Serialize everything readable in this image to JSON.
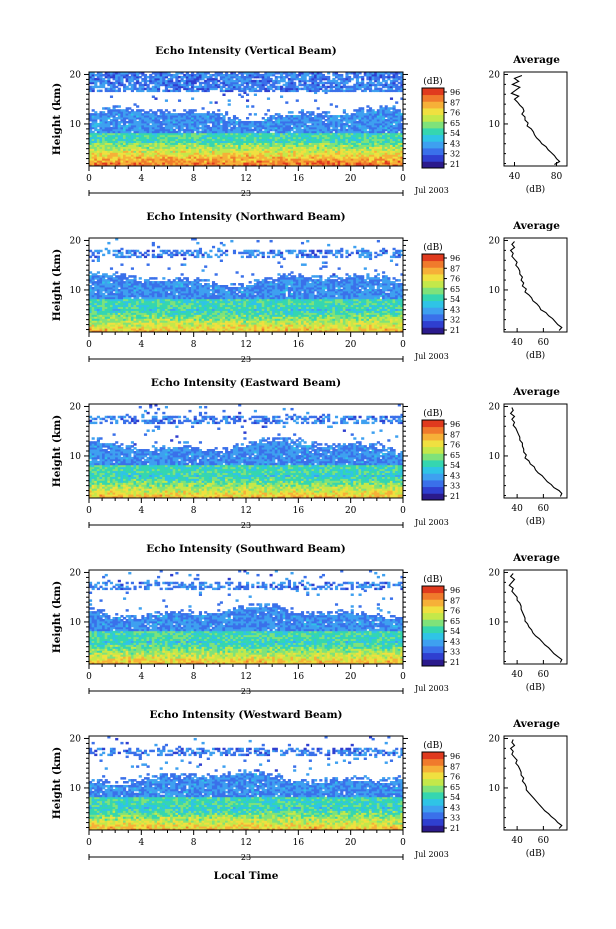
{
  "figure": {
    "xlabel": "Local Time",
    "date_label": "Jul 2003",
    "day_label": "23",
    "colorbar_unit": "(dB)",
    "profile_title": "Average",
    "profile_xlabel": "(dB)"
  },
  "colors": {
    "scale": [
      "#2b1a8c",
      "#2f3fd0",
      "#3a70ea",
      "#3ea0f0",
      "#2fc4e6",
      "#35d6b0",
      "#7fe27a",
      "#c4e84a",
      "#f0e040",
      "#f6b038",
      "#f07a2c",
      "#e03a1e"
    ]
  },
  "chart_data": [
    {
      "type": "heatmap",
      "title": "Echo Intensity (Vertical Beam)",
      "ylabel": "Height (km)",
      "x_ticks": [
        "0",
        "4",
        "8",
        "12",
        "16",
        "20",
        "0"
      ],
      "y_ticks": [
        "20",
        "10"
      ],
      "xlim": [
        0,
        24
      ],
      "ylim": [
        1.5,
        20.5
      ],
      "colorbar_ticks": [
        "96",
        "87",
        "76",
        "65",
        "54",
        "43",
        "32",
        "21"
      ],
      "colorbar_range": [
        21,
        96
      ],
      "average_profile": {
        "x_ticks": [
          "40",
          "80"
        ],
        "y_ticks": [
          "20",
          "10"
        ],
        "xlim": [
          30,
          90
        ],
        "points": [
          [
            47,
            19.8
          ],
          [
            40,
            19.2
          ],
          [
            44,
            18.6
          ],
          [
            38,
            18.0
          ],
          [
            45,
            17.4
          ],
          [
            41,
            16.8
          ],
          [
            37,
            16.2
          ],
          [
            44,
            15.6
          ],
          [
            40,
            15.0
          ],
          [
            43,
            14.4
          ],
          [
            45,
            13.8
          ],
          [
            48,
            13.2
          ],
          [
            49,
            12.6
          ],
          [
            47,
            12.0
          ],
          [
            50,
            11.4
          ],
          [
            50,
            10.8
          ],
          [
            53,
            10.2
          ],
          [
            52,
            9.6
          ],
          [
            56,
            9.0
          ],
          [
            58,
            8.4
          ],
          [
            59,
            7.8
          ],
          [
            61,
            7.2
          ],
          [
            64,
            6.6
          ],
          [
            66,
            6.0
          ],
          [
            70,
            5.4
          ],
          [
            72,
            4.8
          ],
          [
            75,
            4.2
          ],
          [
            78,
            3.6
          ],
          [
            80,
            3.0
          ],
          [
            83,
            2.4
          ],
          [
            78,
            1.8
          ]
        ]
      }
    },
    {
      "type": "heatmap",
      "title": "Echo Intensity (Northward Beam)",
      "ylabel": "Height (km)",
      "x_ticks": [
        "0",
        "4",
        "8",
        "12",
        "16",
        "20",
        "0"
      ],
      "y_ticks": [
        "20",
        "10"
      ],
      "xlim": [
        0,
        24
      ],
      "ylim": [
        1.5,
        20.5
      ],
      "colorbar_ticks": [
        "96",
        "87",
        "76",
        "65",
        "54",
        "43",
        "32",
        "21"
      ],
      "colorbar_range": [
        21,
        96
      ],
      "average_profile": {
        "x_ticks": [
          "40",
          "60"
        ],
        "y_ticks": [
          "20",
          "10"
        ],
        "xlim": [
          30,
          78
        ],
        "points": [
          [
            38,
            19.8
          ],
          [
            36,
            19.2
          ],
          [
            38,
            18.6
          ],
          [
            35,
            18.0
          ],
          [
            37,
            17.4
          ],
          [
            36,
            16.8
          ],
          [
            38,
            16.2
          ],
          [
            40,
            15.6
          ],
          [
            39,
            15.0
          ],
          [
            41,
            14.4
          ],
          [
            42,
            13.8
          ],
          [
            42,
            13.2
          ],
          [
            44,
            12.6
          ],
          [
            43,
            12.0
          ],
          [
            45,
            11.4
          ],
          [
            44,
            10.8
          ],
          [
            47,
            10.2
          ],
          [
            46,
            9.6
          ],
          [
            49,
            9.0
          ],
          [
            51,
            8.4
          ],
          [
            52,
            7.8
          ],
          [
            55,
            7.2
          ],
          [
            57,
            6.6
          ],
          [
            58,
            6.0
          ],
          [
            62,
            5.4
          ],
          [
            64,
            4.8
          ],
          [
            67,
            4.2
          ],
          [
            69,
            3.6
          ],
          [
            71,
            3.0
          ],
          [
            74,
            2.4
          ],
          [
            72,
            1.8
          ]
        ]
      }
    },
    {
      "type": "heatmap",
      "title": "Echo Intensity (Eastward Beam)",
      "ylabel": "Height (km)",
      "x_ticks": [
        "0",
        "4",
        "8",
        "12",
        "16",
        "20",
        "0"
      ],
      "y_ticks": [
        "20",
        "10"
      ],
      "xlim": [
        0,
        24
      ],
      "ylim": [
        1.5,
        20.5
      ],
      "colorbar_ticks": [
        "96",
        "87",
        "76",
        "65",
        "54",
        "43",
        "33",
        "21"
      ],
      "colorbar_range": [
        21,
        96
      ],
      "average_profile": {
        "x_ticks": [
          "40",
          "60"
        ],
        "y_ticks": [
          "20",
          "10"
        ],
        "xlim": [
          30,
          78
        ],
        "points": [
          [
            36,
            19.8
          ],
          [
            37,
            19.2
          ],
          [
            35,
            18.6
          ],
          [
            38,
            18.0
          ],
          [
            36,
            17.4
          ],
          [
            38,
            16.8
          ],
          [
            37,
            16.2
          ],
          [
            39,
            15.6
          ],
          [
            40,
            15.0
          ],
          [
            41,
            14.4
          ],
          [
            42,
            13.8
          ],
          [
            42,
            13.2
          ],
          [
            44,
            12.6
          ],
          [
            44,
            12.0
          ],
          [
            45,
            11.4
          ],
          [
            45,
            10.8
          ],
          [
            47,
            10.2
          ],
          [
            46,
            9.6
          ],
          [
            49,
            9.0
          ],
          [
            50,
            8.4
          ],
          [
            53,
            7.8
          ],
          [
            54,
            7.2
          ],
          [
            56,
            6.6
          ],
          [
            59,
            6.0
          ],
          [
            61,
            5.4
          ],
          [
            63,
            4.8
          ],
          [
            66,
            4.2
          ],
          [
            68,
            3.6
          ],
          [
            72,
            3.0
          ],
          [
            74,
            2.4
          ],
          [
            73,
            1.8
          ]
        ]
      }
    },
    {
      "type": "heatmap",
      "title": "Echo Intensity (Southward Beam)",
      "ylabel": "Height (km)",
      "x_ticks": [
        "0",
        "4",
        "8",
        "12",
        "16",
        "20",
        "0"
      ],
      "y_ticks": [
        "20",
        "10"
      ],
      "xlim": [
        0,
        24
      ],
      "ylim": [
        1.5,
        20.5
      ],
      "colorbar_ticks": [
        "96",
        "87",
        "76",
        "65",
        "54",
        "43",
        "33",
        "21"
      ],
      "colorbar_range": [
        21,
        96
      ],
      "average_profile": {
        "x_ticks": [
          "40",
          "60"
        ],
        "y_ticks": [
          "20",
          "10"
        ],
        "xlim": [
          30,
          78
        ],
        "points": [
          [
            37,
            19.8
          ],
          [
            35,
            19.2
          ],
          [
            38,
            18.6
          ],
          [
            36,
            18.0
          ],
          [
            34,
            17.4
          ],
          [
            37,
            16.8
          ],
          [
            36,
            16.2
          ],
          [
            38,
            15.6
          ],
          [
            40,
            15.0
          ],
          [
            40,
            14.4
          ],
          [
            42,
            13.8
          ],
          [
            43,
            13.2
          ],
          [
            43,
            12.6
          ],
          [
            44,
            12.0
          ],
          [
            45,
            11.4
          ],
          [
            46,
            10.8
          ],
          [
            46,
            10.2
          ],
          [
            48,
            9.6
          ],
          [
            49,
            9.0
          ],
          [
            51,
            8.4
          ],
          [
            52,
            7.8
          ],
          [
            54,
            7.2
          ],
          [
            57,
            6.6
          ],
          [
            59,
            6.0
          ],
          [
            61,
            5.4
          ],
          [
            64,
            4.8
          ],
          [
            66,
            4.2
          ],
          [
            68,
            3.6
          ],
          [
            71,
            3.0
          ],
          [
            74,
            2.4
          ],
          [
            73,
            1.8
          ]
        ]
      }
    },
    {
      "type": "heatmap",
      "title": "Echo Intensity (Westward Beam)",
      "ylabel": "Height (km)",
      "x_ticks": [
        "0",
        "4",
        "8",
        "12",
        "16",
        "20",
        "0"
      ],
      "y_ticks": [
        "20",
        "10"
      ],
      "xlim": [
        0,
        24
      ],
      "ylim": [
        1.5,
        20.5
      ],
      "colorbar_ticks": [
        "96",
        "87",
        "76",
        "65",
        "54",
        "43",
        "33",
        "21"
      ],
      "colorbar_range": [
        21,
        96
      ],
      "average_profile": {
        "x_ticks": [
          "40",
          "60"
        ],
        "y_ticks": [
          "20",
          "10"
        ],
        "xlim": [
          30,
          78
        ],
        "points": [
          [
            37,
            19.8
          ],
          [
            36,
            19.2
          ],
          [
            38,
            18.6
          ],
          [
            35,
            18.0
          ],
          [
            37,
            17.4
          ],
          [
            36,
            16.8
          ],
          [
            38,
            16.2
          ],
          [
            40,
            15.6
          ],
          [
            39,
            15.0
          ],
          [
            41,
            14.4
          ],
          [
            42,
            13.8
          ],
          [
            43,
            13.2
          ],
          [
            43,
            12.6
          ],
          [
            45,
            12.0
          ],
          [
            44,
            11.4
          ],
          [
            46,
            10.8
          ],
          [
            47,
            10.2
          ],
          [
            47,
            9.6
          ],
          [
            49,
            9.0
          ],
          [
            51,
            8.4
          ],
          [
            53,
            7.8
          ],
          [
            55,
            7.2
          ],
          [
            57,
            6.6
          ],
          [
            59,
            6.0
          ],
          [
            61,
            5.4
          ],
          [
            64,
            4.8
          ],
          [
            66,
            4.2
          ],
          [
            69,
            3.6
          ],
          [
            71,
            3.0
          ],
          [
            74,
            2.4
          ],
          [
            72,
            1.8
          ]
        ]
      }
    }
  ]
}
